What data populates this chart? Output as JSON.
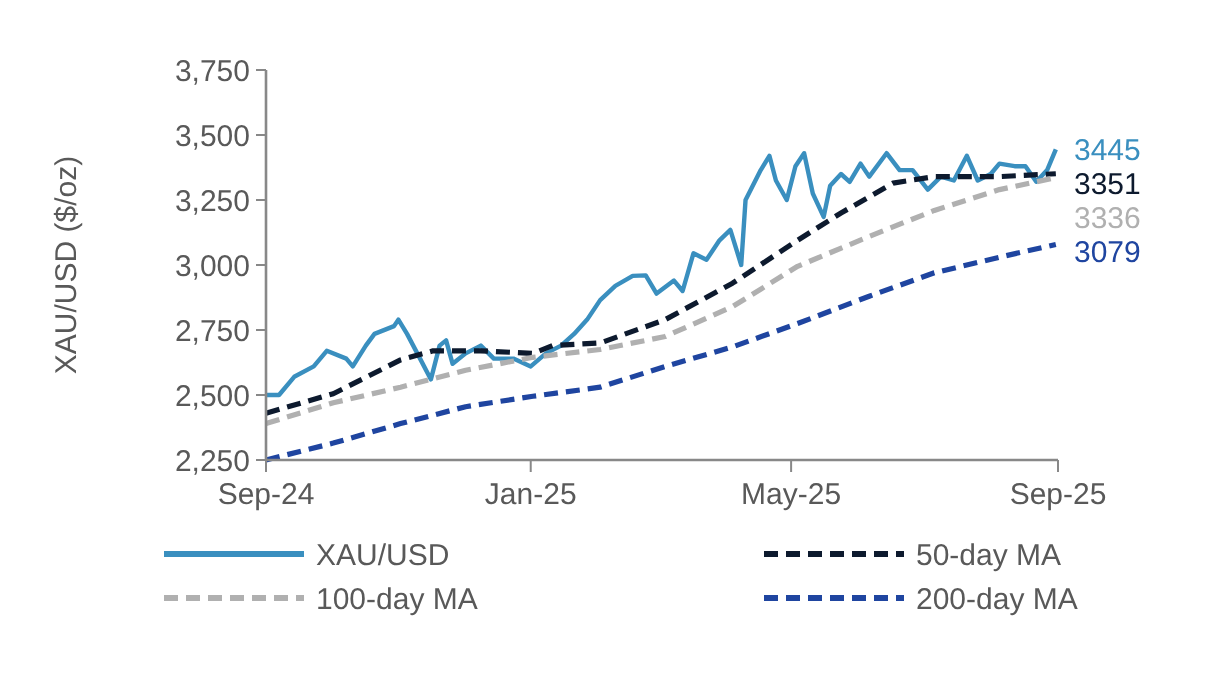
{
  "chart_data": {
    "type": "line",
    "ylabel": "XAU/USD ($/oz)",
    "xlim": [
      "2024-09-01",
      "2025-09-01"
    ],
    "xticks": [
      {
        "value": "2024-09-01",
        "label": "Sep-24"
      },
      {
        "value": "2025-01-01",
        "label": "Jan-25"
      },
      {
        "value": "2025-05-01",
        "label": "May-25"
      },
      {
        "value": "2025-09-01",
        "label": "Sep-25"
      }
    ],
    "ylim": [
      2250,
      3750
    ],
    "yticks": [
      {
        "value": 2250,
        "label": "2,250"
      },
      {
        "value": 2500,
        "label": "2,500"
      },
      {
        "value": 2750,
        "label": "2,750"
      },
      {
        "value": 3000,
        "label": "3,000"
      },
      {
        "value": 3250,
        "label": "3,250"
      },
      {
        "value": 3500,
        "label": "3,500"
      },
      {
        "value": 3750,
        "label": "3,750"
      }
    ],
    "grid": false,
    "legend": "bottom",
    "series": [
      {
        "name": "XAU/USD",
        "color": "#3a8fbf",
        "line_style": "solid",
        "x": [
          "2024-09-01",
          "2024-09-07",
          "2024-09-14",
          "2024-09-23",
          "2024-09-29",
          "2024-10-08",
          "2024-10-11",
          "2024-10-17",
          "2024-10-21",
          "2024-10-30",
          "2024-11-01",
          "2024-11-05",
          "2024-11-11",
          "2024-11-16",
          "2024-11-20",
          "2024-11-23",
          "2024-11-26",
          "2024-12-02",
          "2024-12-09",
          "2024-12-15",
          "2024-12-24",
          "2025-01-01",
          "2025-01-08",
          "2025-01-15",
          "2025-01-21",
          "2025-01-27",
          "2025-02-02",
          "2025-02-09",
          "2025-02-17",
          "2025-02-23",
          "2025-02-28",
          "2025-03-08",
          "2025-03-12",
          "2025-03-17",
          "2025-03-23",
          "2025-03-29",
          "2025-04-03",
          "2025-04-08",
          "2025-04-10",
          "2025-04-17",
          "2025-04-21",
          "2025-04-24",
          "2025-04-29",
          "2025-05-03",
          "2025-05-07",
          "2025-05-11",
          "2025-05-16",
          "2025-05-19",
          "2025-05-24",
          "2025-05-28",
          "2025-06-02",
          "2025-06-06",
          "2025-06-14",
          "2025-06-20",
          "2025-06-26",
          "2025-07-03",
          "2025-07-09",
          "2025-07-15",
          "2025-07-21",
          "2025-07-26",
          "2025-08-01",
          "2025-08-05",
          "2025-08-12",
          "2025-08-17",
          "2025-08-22",
          "2025-08-27",
          "2025-08-31"
        ],
        "values": [
          2500,
          2500,
          2570,
          2610,
          2670,
          2640,
          2610,
          2690,
          2735,
          2765,
          2790,
          2735,
          2640,
          2560,
          2690,
          2710,
          2620,
          2660,
          2690,
          2640,
          2640,
          2610,
          2660,
          2690,
          2735,
          2790,
          2865,
          2920,
          2958,
          2960,
          2890,
          2940,
          2900,
          3045,
          3020,
          3095,
          3135,
          3000,
          3250,
          3365,
          3420,
          3325,
          3250,
          3380,
          3430,
          3275,
          3185,
          3305,
          3350,
          3320,
          3390,
          3340,
          3430,
          3365,
          3365,
          3290,
          3340,
          3325,
          3420,
          3325,
          3350,
          3390,
          3380,
          3380,
          3320,
          3365,
          3445
        ]
      },
      {
        "name": "50-day MA",
        "color": "#0d1a2e",
        "line_style": "dashed",
        "x": [
          "2024-09-01",
          "2024-10-02",
          "2024-11-02",
          "2024-11-17",
          "2024-12-09",
          "2025-01-02",
          "2025-01-11",
          "2025-02-02",
          "2025-03-04",
          "2025-04-04",
          "2025-05-04",
          "2025-05-24",
          "2025-06-17",
          "2025-07-06",
          "2025-08-05",
          "2025-08-31"
        ],
        "values": [
          2430,
          2505,
          2635,
          2670,
          2670,
          2660,
          2690,
          2700,
          2790,
          2930,
          3095,
          3200,
          3315,
          3340,
          3340,
          3351
        ]
      },
      {
        "name": "100-day MA",
        "color": "#b0b0b0",
        "line_style": "dashed",
        "x": [
          "2024-09-01",
          "2024-10-02",
          "2024-11-02",
          "2024-12-02",
          "2025-01-02",
          "2025-02-02",
          "2025-03-04",
          "2025-04-04",
          "2025-05-04",
          "2025-06-06",
          "2025-07-06",
          "2025-08-05",
          "2025-08-31"
        ],
        "values": [
          2390,
          2470,
          2530,
          2595,
          2645,
          2675,
          2725,
          2840,
          2995,
          3110,
          3210,
          3290,
          3336
        ]
      },
      {
        "name": "200-day MA",
        "color": "#1f45a0",
        "line_style": "dashed",
        "x": [
          "2024-09-01",
          "2024-10-02",
          "2024-11-02",
          "2024-12-02",
          "2025-01-02",
          "2025-02-02",
          "2025-03-04",
          "2025-04-04",
          "2025-05-04",
          "2025-06-06",
          "2025-07-06",
          "2025-08-05",
          "2025-08-31"
        ],
        "values": [
          2250,
          2315,
          2390,
          2455,
          2495,
          2530,
          2610,
          2685,
          2775,
          2880,
          2970,
          3030,
          3079
        ]
      }
    ],
    "annotations": [
      {
        "text": "3445",
        "x": "2025-08-31",
        "y": 3445
      },
      {
        "text": "3351",
        "x": "2025-08-31",
        "y": 3351
      },
      {
        "text": "3336",
        "x": "2025-08-31",
        "y": 3336
      },
      {
        "text": "3079",
        "x": "2025-08-31",
        "y": 3079
      }
    ]
  }
}
